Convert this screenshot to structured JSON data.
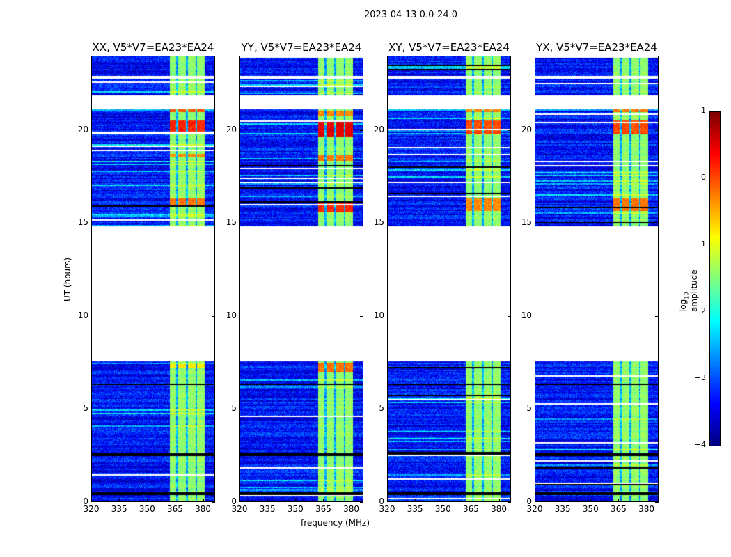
{
  "suptitle": "2023-04-13 0.0-24.0",
  "chart_data": {
    "type": "heatmap",
    "title": "2023-04-13 0.0-24.0",
    "xlabel": "frequency (MHz)",
    "ylabel": "UT (hours)",
    "xlim": [
      320,
      386.5
    ],
    "ylim": [
      0,
      24
    ],
    "xticks": [
      "320",
      "335",
      "350",
      "365",
      "380"
    ],
    "xtick_values": [
      320,
      335,
      350,
      365,
      380
    ],
    "yticks": [
      "0",
      "5",
      "10",
      "15",
      "20"
    ],
    "ytick_values": [
      0,
      5,
      10,
      15,
      20
    ],
    "panels": [
      {
        "title": "XX, V5*V7=EA23*EA24",
        "hot_bands": [
          [
            19.8,
            20.6,
            0.2
          ],
          [
            21.0,
            21.2,
            0.0
          ],
          [
            16.0,
            16.4,
            -0.2
          ],
          [
            18.6,
            18.8,
            -0.3
          ],
          [
            7.2,
            7.4,
            -0.8
          ]
        ]
      },
      {
        "title": "YY, V5*V7=EA23*EA24",
        "hot_bands": [
          [
            19.7,
            20.6,
            0.5
          ],
          [
            15.6,
            16.2,
            0.2
          ],
          [
            18.4,
            18.7,
            -0.2
          ],
          [
            7.0,
            7.5,
            -0.2
          ],
          [
            20.8,
            21.1,
            -0.3
          ]
        ]
      },
      {
        "title": "XY, V5*V7=EA23*EA24",
        "hot_bands": [
          [
            19.8,
            20.6,
            0.0
          ],
          [
            21.0,
            21.2,
            -0.3
          ],
          [
            15.7,
            16.4,
            -0.3
          ]
        ]
      },
      {
        "title": "YX, V5*V7=EA23*EA24",
        "hot_bands": [
          [
            19.8,
            20.6,
            0.0
          ],
          [
            21.0,
            21.2,
            -0.2
          ],
          [
            15.7,
            16.4,
            -0.2
          ]
        ]
      }
    ],
    "background_log_amplitude": -3.3,
    "bright_channel_range_mhz": [
      362,
      381
    ],
    "bright_channel_log_amplitude": -1.4,
    "blank_time_ranges": [
      [
        7.6,
        14.9
      ],
      [
        21.2,
        21.9
      ],
      [
        22.8,
        23.0
      ]
    ],
    "flagged_time_ranges": [
      [
        0.35,
        0.55
      ],
      [
        2.5,
        2.6
      ],
      [
        6.3,
        6.4
      ]
    ],
    "colorbar": {
      "label_main": "log",
      "label_sub": "10",
      "label_rest": " amplitude",
      "range": [
        -4,
        1
      ],
      "ticks": [
        "−4",
        "−3",
        "−2",
        "−1",
        "0",
        "1"
      ],
      "tick_values": [
        -4,
        -3,
        -2,
        -1,
        0,
        1
      ],
      "colormap": "jet"
    }
  }
}
